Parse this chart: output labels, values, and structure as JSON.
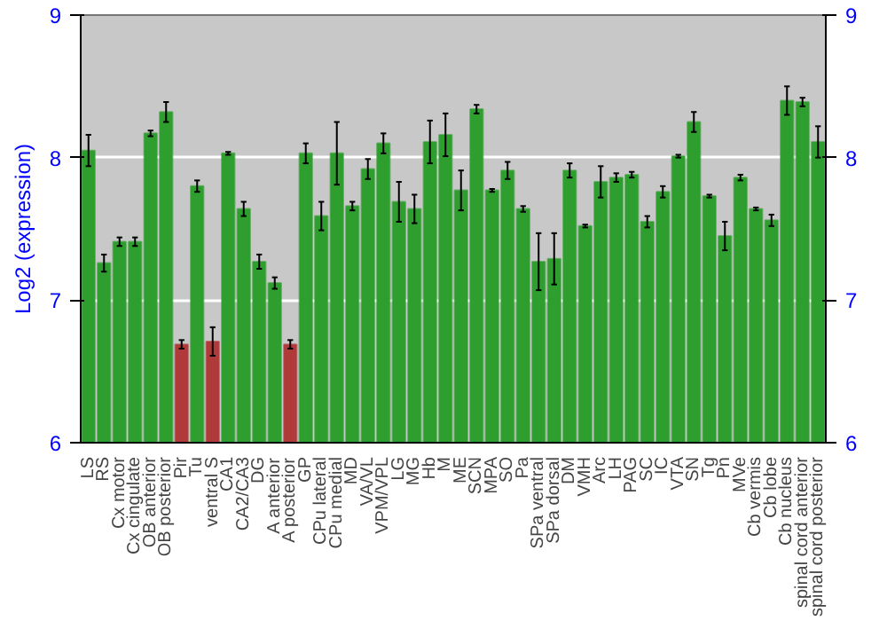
{
  "chart_data": {
    "type": "bar",
    "ylabel": "Log2 (expression)",
    "categories": [
      "LS",
      "RS",
      "Cx motor",
      "Cx cingulate",
      "OB anterior",
      "OB posterior",
      "Pir",
      "Tu",
      "ventral S",
      "CA1",
      "CA2/CA3",
      "DG",
      "A anterior",
      "A posterior",
      "GP",
      "CPu lateral",
      "CPu medial",
      "MD",
      "VA/VL",
      "VPM/VPL",
      "LG",
      "MG",
      "Hb",
      "M",
      "ME",
      "SCN",
      "MPA",
      "SO",
      "Pa",
      "SPa ventral",
      "SPa dorsal",
      "DM",
      "VMH",
      "Arc",
      "LH",
      "PAG",
      "SC",
      "IC",
      "VTA",
      "SN",
      "Tg",
      "Pn",
      "MVe",
      "Cb vermis",
      "Cb lobe",
      "Cb nucleus",
      "spinal cord anterior",
      "spinal cord posterior"
    ],
    "values": [
      8.05,
      7.26,
      7.41,
      7.41,
      8.17,
      8.32,
      6.69,
      7.8,
      6.71,
      8.03,
      7.64,
      7.27,
      7.12,
      6.69,
      8.03,
      7.59,
      8.03,
      7.66,
      7.92,
      8.1,
      7.69,
      7.64,
      8.11,
      8.16,
      7.77,
      8.34,
      7.77,
      7.91,
      7.64,
      7.27,
      7.29,
      7.91,
      7.52,
      7.83,
      7.86,
      7.88,
      7.55,
      7.76,
      8.01,
      8.25,
      7.73,
      7.45,
      7.86,
      7.64,
      7.56,
      8.4,
      8.39,
      8.11
    ],
    "errors": [
      0.11,
      0.06,
      0.03,
      0.03,
      0.02,
      0.07,
      0.03,
      0.04,
      0.1,
      0.01,
      0.05,
      0.05,
      0.04,
      0.03,
      0.07,
      0.1,
      0.22,
      0.03,
      0.07,
      0.07,
      0.14,
      0.1,
      0.15,
      0.15,
      0.14,
      0.03,
      0.01,
      0.06,
      0.02,
      0.2,
      0.18,
      0.05,
      0.01,
      0.11,
      0.03,
      0.02,
      0.04,
      0.04,
      0.01,
      0.07,
      0.01,
      0.1,
      0.02,
      0.01,
      0.04,
      0.1,
      0.03,
      0.11
    ],
    "colors": [
      "#2e9e2e",
      "#2e9e2e",
      "#2e9e2e",
      "#2e9e2e",
      "#2e9e2e",
      "#2e9e2e",
      "#b03a3a",
      "#2e9e2e",
      "#b03a3a",
      "#2e9e2e",
      "#2e9e2e",
      "#2e9e2e",
      "#2e9e2e",
      "#b03a3a",
      "#2e9e2e",
      "#2e9e2e",
      "#2e9e2e",
      "#2e9e2e",
      "#2e9e2e",
      "#2e9e2e",
      "#2e9e2e",
      "#2e9e2e",
      "#2e9e2e",
      "#2e9e2e",
      "#2e9e2e",
      "#2e9e2e",
      "#2e9e2e",
      "#2e9e2e",
      "#2e9e2e",
      "#2e9e2e",
      "#2e9e2e",
      "#2e9e2e",
      "#2e9e2e",
      "#2e9e2e",
      "#2e9e2e",
      "#2e9e2e",
      "#2e9e2e",
      "#2e9e2e",
      "#2e9e2e",
      "#2e9e2e",
      "#2e9e2e",
      "#2e9e2e",
      "#2e9e2e",
      "#2e9e2e",
      "#2e9e2e",
      "#2e9e2e",
      "#2e9e2e",
      "#2e9e2e"
    ],
    "ylim": [
      6,
      9
    ],
    "yticks": [
      6,
      7,
      8,
      9
    ],
    "y2lim": [
      6,
      9
    ],
    "y2ticks": [
      6,
      7,
      8,
      9
    ],
    "grid": "y"
  }
}
